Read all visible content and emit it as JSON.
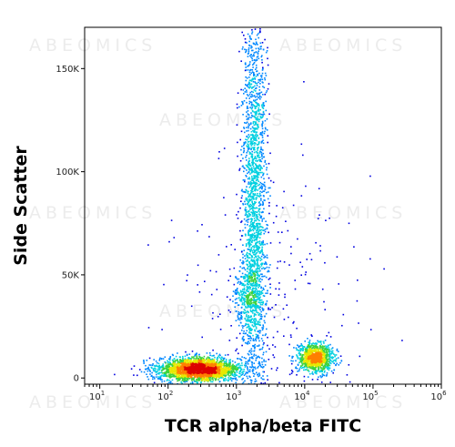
{
  "watermark": "ABEOMICS",
  "chart_data": {
    "type": "scatter",
    "subtype": "flow-cytometry-density-dot-plot",
    "xlabel": "TCR alpha/beta FITC",
    "ylabel": "Side Scatter",
    "x_scale": "log",
    "xlim": [
      6,
      1000000
    ],
    "ylim": [
      -3000,
      170000
    ],
    "x_ticks": [
      {
        "value": 10,
        "base": "10",
        "exp": "1"
      },
      {
        "value": 100,
        "base": "10",
        "exp": "2"
      },
      {
        "value": 1000,
        "base": "10",
        "exp": "3"
      },
      {
        "value": 10000,
        "base": "10",
        "exp": "4"
      },
      {
        "value": 100000,
        "base": "10",
        "exp": "5"
      },
      {
        "value": 1000000,
        "base": "10",
        "exp": "6"
      }
    ],
    "y_ticks": [
      {
        "value": 0,
        "label": "0"
      },
      {
        "value": 50000,
        "label": "50K"
      },
      {
        "value": 100000,
        "label": "100K"
      },
      {
        "value": 150000,
        "label": "150K"
      }
    ],
    "populations": [
      {
        "x_center": 280,
        "x_log_spread": 0.3,
        "y_center": 4500,
        "y_spread": 2800,
        "points": 2600
      },
      {
        "x_center": 1800,
        "x_log_spread": 0.09,
        "y_center": 90000,
        "y_spread": 50000,
        "points": 2000
      },
      {
        "x_center": 1500,
        "x_log_spread": 0.11,
        "y_center": 40000,
        "y_spread": 9000,
        "points": 400
      },
      {
        "x_center": 14000,
        "x_log_spread": 0.13,
        "y_center": 10000,
        "y_spread": 3500,
        "points": 1000
      },
      {
        "x_center": 3000,
        "x_log_spread": 0.7,
        "y_center": 30000,
        "y_spread": 35000,
        "points": 300
      }
    ],
    "density_colors": [
      "#0000e0",
      "#0088ff",
      "#00d0e0",
      "#3cd23c",
      "#e8e800",
      "#ff8000",
      "#dd0000"
    ],
    "grid": false,
    "legend": "none"
  }
}
